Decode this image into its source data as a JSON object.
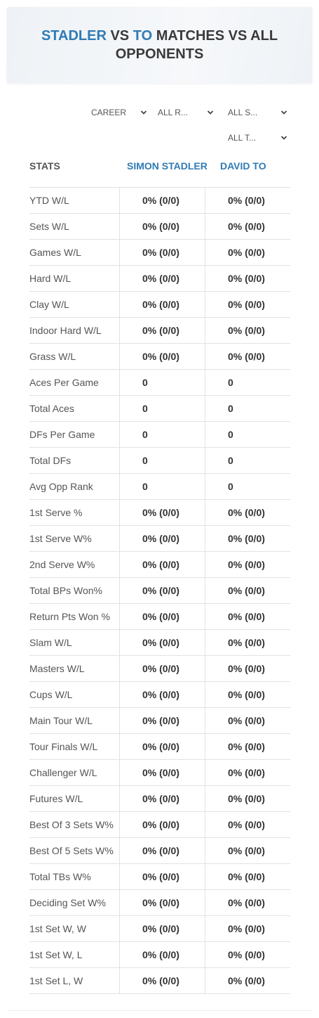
{
  "header": {
    "title": [
      "STADLER",
      "VS",
      "TO",
      "MATCHES VS ALL OPPONENTS"
    ]
  },
  "filters": [
    "CAREER",
    "ALL R...",
    "ALL S...",
    "ALL T..."
  ],
  "table": {
    "columns": [
      "STATS",
      "SIMON STADLER",
      "DAVID TO"
    ],
    "rows": [
      [
        "YTD W/L",
        "0% (0/0)",
        "0% (0/0)"
      ],
      [
        "Sets W/L",
        "0% (0/0)",
        "0% (0/0)"
      ],
      [
        "Games W/L",
        "0% (0/0)",
        "0% (0/0)"
      ],
      [
        "Hard W/L",
        "0% (0/0)",
        "0% (0/0)"
      ],
      [
        "Clay W/L",
        "0% (0/0)",
        "0% (0/0)"
      ],
      [
        "Indoor Hard W/L",
        "0% (0/0)",
        "0% (0/0)"
      ],
      [
        "Grass W/L",
        "0% (0/0)",
        "0% (0/0)"
      ],
      [
        "Aces Per Game",
        "0",
        "0"
      ],
      [
        "Total Aces",
        "0",
        "0"
      ],
      [
        "DFs Per Game",
        "0",
        "0"
      ],
      [
        "Total DFs",
        "0",
        "0"
      ],
      [
        "Avg Opp Rank",
        "0",
        "0"
      ],
      [
        "1st Serve %",
        "0% (0/0)",
        "0% (0/0)"
      ],
      [
        "1st Serve W%",
        "0% (0/0)",
        "0% (0/0)"
      ],
      [
        "2nd Serve W%",
        "0% (0/0)",
        "0% (0/0)"
      ],
      [
        "Total BPs Won%",
        "0% (0/0)",
        "0% (0/0)"
      ],
      [
        "Return Pts Won %",
        "0% (0/0)",
        "0% (0/0)"
      ],
      [
        "Slam W/L",
        "0% (0/0)",
        "0% (0/0)"
      ],
      [
        "Masters W/L",
        "0% (0/0)",
        "0% (0/0)"
      ],
      [
        "Cups W/L",
        "0% (0/0)",
        "0% (0/0)"
      ],
      [
        "Main Tour W/L",
        "0% (0/0)",
        "0% (0/0)"
      ],
      [
        "Tour Finals W/L",
        "0% (0/0)",
        "0% (0/0)"
      ],
      [
        "Challenger W/L",
        "0% (0/0)",
        "0% (0/0)"
      ],
      [
        "Futures W/L",
        "0% (0/0)",
        "0% (0/0)"
      ],
      [
        "Best Of 3 Sets W%",
        "0% (0/0)",
        "0% (0/0)"
      ],
      [
        "Best Of 5 Sets W%",
        "0% (0/0)",
        "0% (0/0)"
      ],
      [
        "Total TBs W%",
        "0% (0/0)",
        "0% (0/0)"
      ],
      [
        "Deciding Set W%",
        "0% (0/0)",
        "0% (0/0)"
      ],
      [
        "1st Set W, W",
        "0% (0/0)",
        "0% (0/0)"
      ],
      [
        "1st Set W, L",
        "0% (0/0)",
        "0% (0/0)"
      ],
      [
        "1st Set L, W",
        "0% (0/0)",
        "0% (0/0)"
      ]
    ]
  }
}
